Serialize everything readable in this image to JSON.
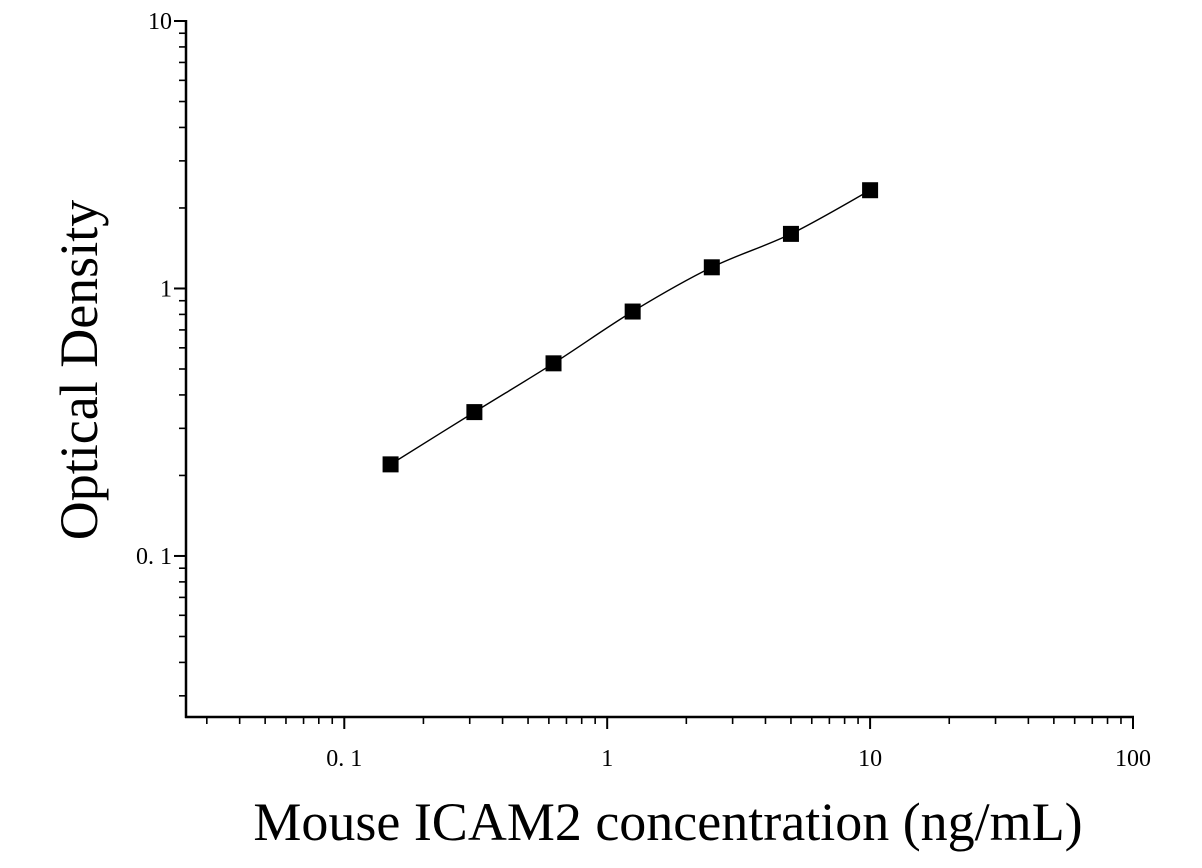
{
  "chart_data": {
    "type": "scatter",
    "title": "",
    "xlabel": "Mouse ICAM2 concentration (ng/mL)",
    "ylabel": "Optical Density",
    "x_scale": "log",
    "y_scale": "log",
    "xlim": [
      0.025,
      100
    ],
    "ylim": [
      0.025,
      10
    ],
    "x_ticks": [
      {
        "value": 0.1,
        "label": "0. 1"
      },
      {
        "value": 1,
        "label": "1"
      },
      {
        "value": 10,
        "label": "10"
      },
      {
        "value": 100,
        "label": "100"
      }
    ],
    "y_ticks": [
      {
        "value": 0.1,
        "label": "0. 1"
      },
      {
        "value": 1,
        "label": "1"
      },
      {
        "value": 10,
        "label": "10"
      }
    ],
    "grid": false,
    "legend": "none",
    "marker": "square",
    "fit_line": true,
    "color": "#000000",
    "series": [
      {
        "x": [
          0.15,
          0.3125,
          0.625,
          1.25,
          2.5,
          5,
          10
        ],
        "y": [
          0.22,
          0.345,
          0.525,
          0.82,
          1.2,
          1.6,
          2.33
        ]
      }
    ]
  }
}
